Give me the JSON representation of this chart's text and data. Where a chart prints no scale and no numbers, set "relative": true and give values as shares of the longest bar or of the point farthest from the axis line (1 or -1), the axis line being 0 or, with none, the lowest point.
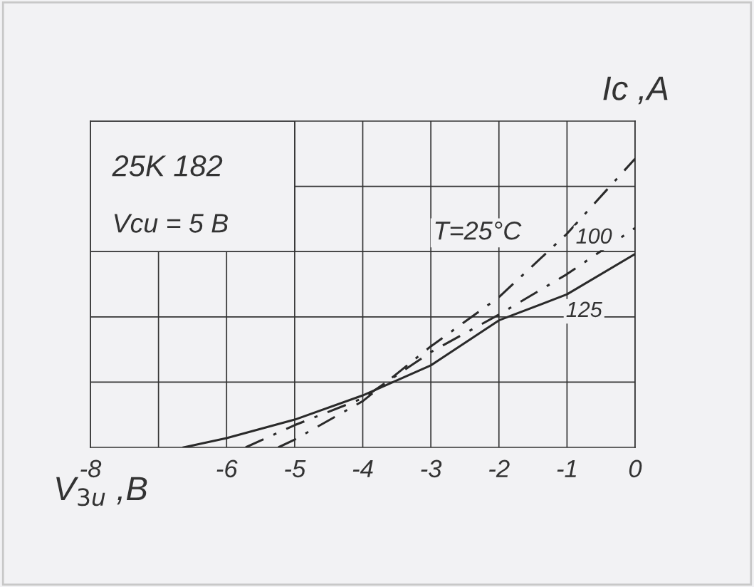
{
  "chart_data": {
    "type": "line",
    "relative": true,
    "xlabel": "V$_{3u}$ ,B",
    "ylabel": "Ic ,A",
    "annotations": [
      "25K 182",
      "Vcu = 5 B"
    ],
    "xlim": [
      -8,
      0
    ],
    "xticks": [
      -8,
      {
        "value": -7,
        "label": null
      },
      -6,
      -5,
      -4,
      -3,
      -2,
      -1,
      0
    ],
    "grid": true,
    "legend": false,
    "series": [
      {
        "name": "T=25°C",
        "color": "#2a2a2a",
        "line_style": "dashed",
        "x": [
          -5.24,
          -5,
          -4,
          -3,
          -2,
          -1,
          0
        ],
        "values": [
          0,
          0.027,
          0.16,
          0.35,
          0.52,
          0.74,
          1
        ]
      },
      {
        "name": "100",
        "color": "#2a2a2a",
        "line_style": "dashed",
        "x": [
          -5.72,
          -5,
          -4,
          -3,
          -2,
          -1,
          0
        ],
        "values": [
          0,
          0.077,
          0.17,
          0.33,
          0.46,
          0.6,
          0.76
        ]
      },
      {
        "name": "125",
        "color": "#2a2a2a",
        "line_style": "solid",
        "x": [
          -6.63,
          -6,
          -5,
          -4,
          -3,
          -2,
          -1,
          0
        ],
        "values": [
          0,
          0.032,
          0.096,
          0.18,
          0.284,
          0.44,
          0.53,
          0.67
        ]
      }
    ]
  }
}
